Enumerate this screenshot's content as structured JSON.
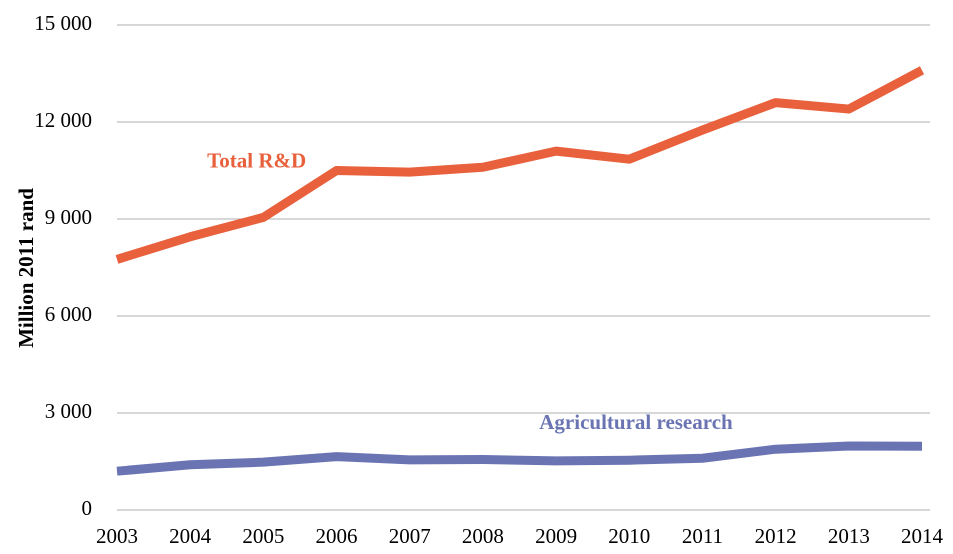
{
  "chart_data": {
    "type": "line",
    "ylabel": "Million 2011 rand",
    "categories": [
      "2003",
      "2004",
      "2005",
      "2006",
      "2007",
      "2008",
      "2009",
      "2010",
      "2011",
      "2012",
      "2013",
      "2014"
    ],
    "series": [
      {
        "name": "Total R&D",
        "color": "#e8603c",
        "values": [
          7750,
          8450,
          9050,
          10500,
          10450,
          10600,
          11100,
          10850,
          11750,
          12600,
          12400,
          13600
        ]
      },
      {
        "name": "Agricultural research",
        "color": "#6b74b3",
        "values": [
          1200,
          1400,
          1480,
          1650,
          1550,
          1560,
          1520,
          1540,
          1600,
          1880,
          1980,
          1970
        ]
      }
    ],
    "ylim": [
      0,
      15000
    ],
    "yticks": [
      0,
      {
        "value": 3000,
        "label": "3 000"
      },
      {
        "value": 6000,
        "label": "6 000"
      },
      {
        "value": 9000,
        "label": "9 000"
      },
      {
        "value": 12000,
        "label": "12 000"
      },
      {
        "value": 15000,
        "label": "15 000"
      }
    ],
    "grid": true
  }
}
